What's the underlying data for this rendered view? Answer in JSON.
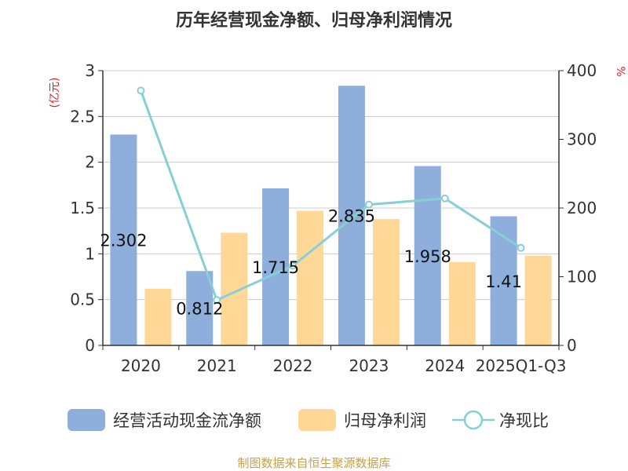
{
  "title": "历年经营现金净额、归母净利润情况",
  "source": "制图数据来自恒生聚源数据库",
  "chart_data": {
    "type": "bar",
    "categories": [
      "2020",
      "2021",
      "2022",
      "2023",
      "2024",
      "2025Q1-Q3"
    ],
    "series": [
      {
        "name": "经营活动现金流净额",
        "kind": "bar",
        "axis": "left",
        "color": "#8eaedb",
        "values": [
          2.302,
          0.812,
          1.715,
          2.835,
          1.958,
          1.41
        ],
        "labels": [
          "2.302",
          "0.812",
          "1.715",
          "2.835",
          "1.958",
          "1.41"
        ]
      },
      {
        "name": "归母净利润",
        "kind": "bar",
        "axis": "left",
        "color": "#ffd796",
        "values": [
          0.62,
          1.23,
          1.47,
          1.38,
          0.91,
          0.98
        ]
      },
      {
        "name": "净现比",
        "kind": "line",
        "axis": "right",
        "color": "#86cfd6",
        "values": [
          371,
          66,
          116,
          205,
          214,
          142
        ]
      }
    ],
    "y_left": {
      "unit": "(亿元)",
      "min": 0,
      "max": 3,
      "ticks": [
        "0",
        "0.5",
        "1",
        "1.5",
        "2",
        "2.5",
        "3"
      ]
    },
    "y_right": {
      "unit": "%",
      "min": 0,
      "max": 400,
      "ticks": [
        "0",
        "100",
        "200",
        "300",
        "400"
      ]
    },
    "grid": true,
    "legend_position": "bottom"
  },
  "colors": {
    "unit_label": "#e02020",
    "source_text": "#c8a046",
    "axis": "#333333",
    "grid": "#cccccc"
  }
}
